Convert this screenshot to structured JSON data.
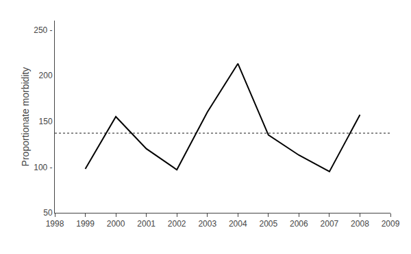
{
  "chart_data": {
    "type": "line",
    "x": [
      1999,
      2000,
      2001,
      2002,
      2003,
      2004,
      2005,
      2006,
      2007,
      2008
    ],
    "values": [
      98,
      155,
      120,
      97,
      160,
      213,
      135,
      113,
      95,
      157
    ],
    "color": "#000000",
    "mean_line": {
      "value": 137,
      "color": "#666666",
      "line_style": "dotted"
    },
    "xlim": [
      1998,
      2009
    ],
    "xticks": [
      1998,
      1999,
      2000,
      2001,
      2002,
      2003,
      2004,
      2005,
      2006,
      2007,
      2008,
      2009
    ],
    "ylim": [
      50,
      260
    ],
    "yticks": [
      50,
      {
        "value": 100,
        "label": "100 -"
      },
      150,
      200,
      {
        "value": 250,
        "label": "250 -"
      }
    ],
    "ylabel": "Proportionate morbidity",
    "grid": false
  }
}
